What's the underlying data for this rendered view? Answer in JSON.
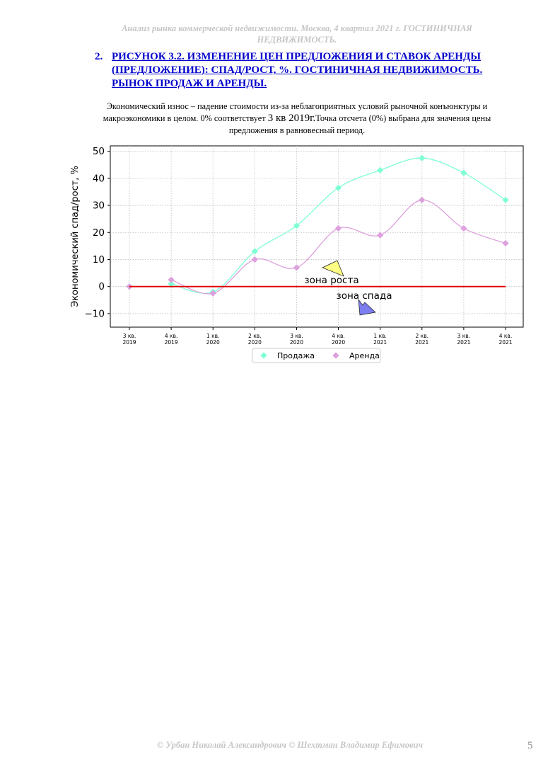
{
  "header": {
    "text": "Анализ рынка коммерческой недвижимости.   Москва, 4 квартал 2021 г.   ГОСТИНИЧНАЯ НЕДВИЖИМОСТЬ."
  },
  "section": {
    "number": "2.",
    "title": "РИСУНОК 3.2. ИЗМЕНЕНИЕ ЦЕН ПРЕДЛОЖЕНИЯ И СТАВОК АРЕНДЫ (ПРЕДЛОЖЕНИЕ): СПАД/РОСТ, %. ГОСТИНИЧНАЯ НЕДВИЖИМОСТЬ. РЫНОК ПРОДАЖ И АРЕНДЫ."
  },
  "description": {
    "part1": "Экономический износ – падение стоимости из-за неблагоприятных условий рыночной конъюнктуры и макроэкономики в целом. 0% соответствует ",
    "part2": "3 кв 2019г.",
    "part3": "Точка отсчета (0%) выбрана для значения цены предложения в равновесный период."
  },
  "chart_data": {
    "type": "line",
    "categories": [
      "3 кв. 2019",
      "4 кв. 2019",
      "1 кв. 2020",
      "2 кв. 2020",
      "3 кв. 2020",
      "4 кв. 2020",
      "1 кв. 2021",
      "2 кв. 2021",
      "3 кв. 2021",
      "4 кв. 2021"
    ],
    "series": [
      {
        "name": "Продажа",
        "color": "#7fffd4",
        "values": [
          0,
          1,
          -2,
          13,
          22.5,
          36.5,
          43,
          47.5,
          42,
          32
        ]
      },
      {
        "name": "Аренда",
        "color": "#dda0dd",
        "values": [
          0,
          2.5,
          -2.5,
          10,
          7,
          21.5,
          19,
          32,
          21.5,
          16
        ]
      }
    ],
    "ylabel": "Экономический спад/рост, %",
    "ylim": [
      -15,
      52
    ],
    "yticks": [
      -10,
      0,
      10,
      20,
      30,
      40,
      50
    ],
    "grid": true,
    "legend": "bottom-center",
    "zero_line_color": "#e00000",
    "annotations": [
      {
        "text": "зона роста",
        "arrow_color": "#ffff77"
      },
      {
        "text": "зона спада",
        "arrow_color": "#7070ee"
      }
    ]
  },
  "footer": {
    "text": "© Урбан Николай Александрович   © Шехтман Владимир Ефимович"
  },
  "page_number": "5"
}
